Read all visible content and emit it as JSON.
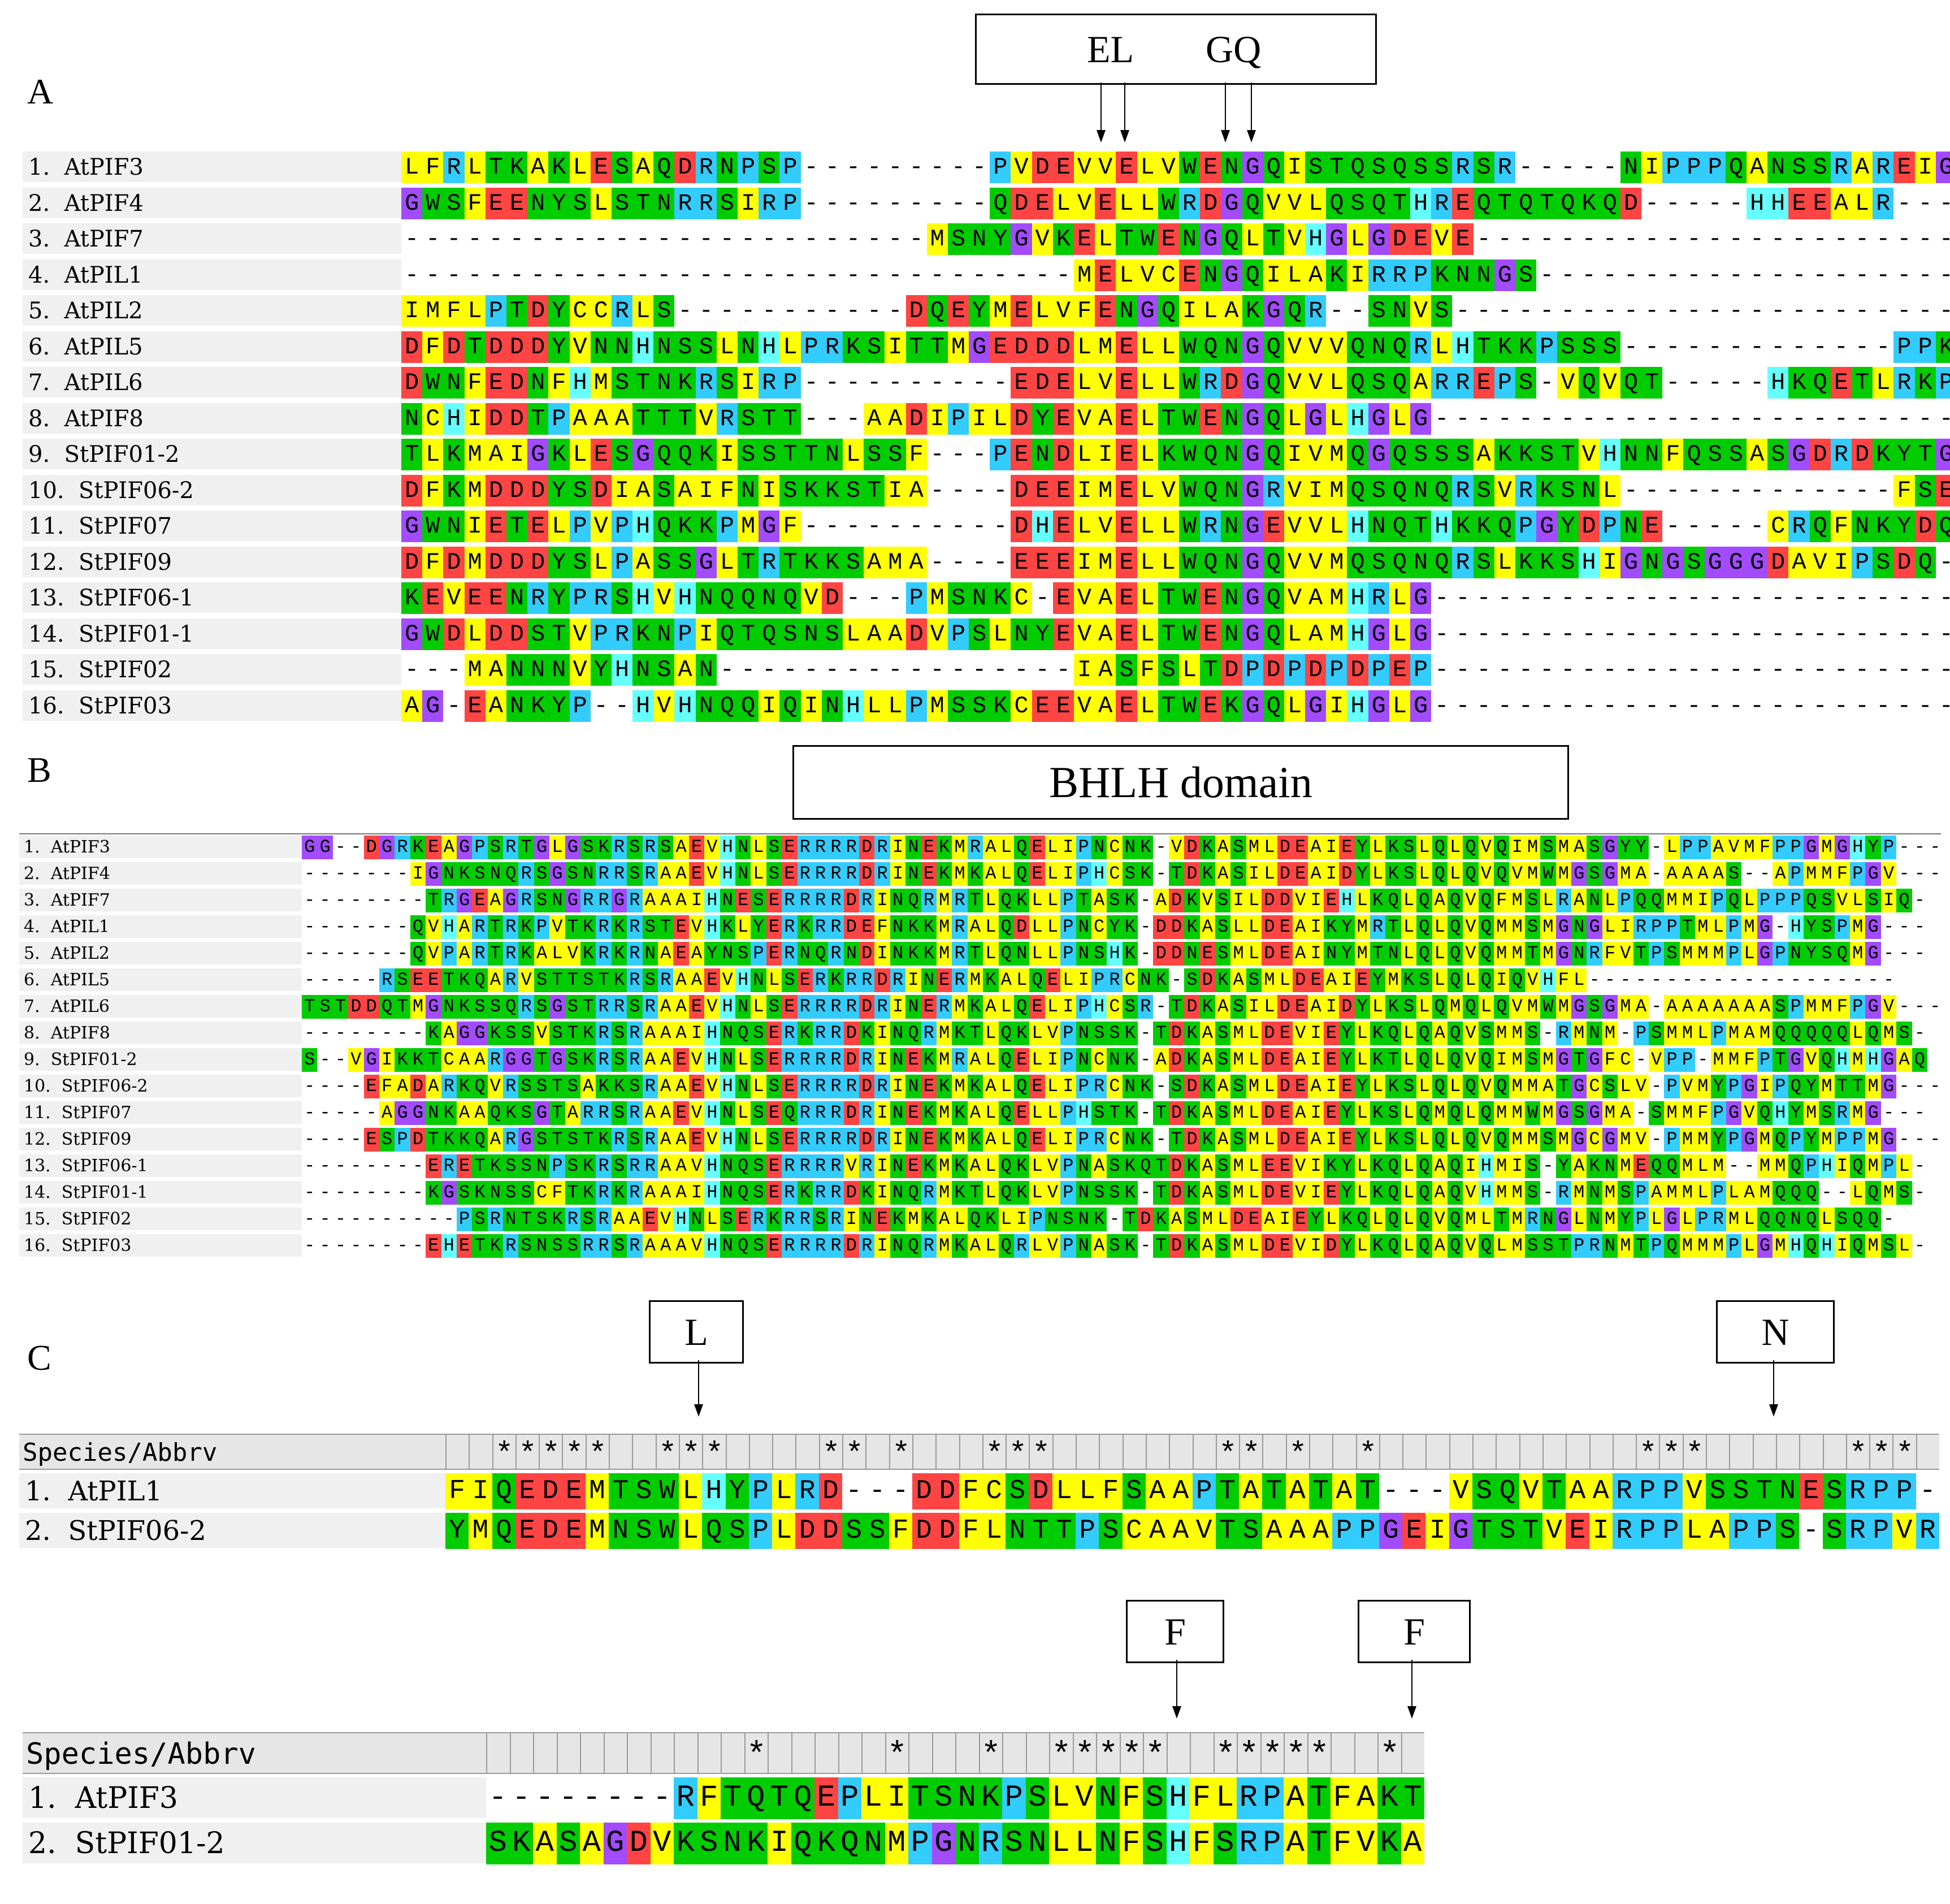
{
  "colors": {
    "A": "#ffff00",
    "C": "#ffff00",
    "G": "#a24bff",
    "H": "#66ffff",
    "I": "#ffff00",
    "K": "#00cc00",
    "L": "#ffff00",
    "M": "#ffff00",
    "N": "#00cc00",
    "P": "#33ccff",
    "Q": "#00cc00",
    "R": "#33ccff",
    "S": "#00cc00",
    "T": "#00cc00",
    "V": "#ffff00",
    "W": "#00cc00",
    "Y": "#00cc00",
    "F": "#ffff00",
    "D": "#ff4444",
    "E": "#ff4444",
    "-": "#ffffff"
  },
  "panelA": {
    "letter": "A",
    "box": {
      "part1": "EL",
      "part2": "GQ"
    },
    "names": [
      "1.  AtPIF3",
      "2.  AtPIF4",
      "3.  AtPIF7",
      "4.  AtPIL1",
      "5.  AtPIL2",
      "6.  AtPIL5",
      "7.  AtPIL6",
      "8.  AtPIF8",
      "9.  StPIF01-2",
      "10.  StPIF06-2",
      "11.  StPIF07",
      "12.  StPIF09",
      "13.  StPIF06-1",
      "14.  StPIF01-1",
      "15.  StPIF02",
      "16.  StPIF03"
    ],
    "seqs": [
      "LFRLTKAKLESAQDRNPSP---------PVDEVVELVWENGQISTQSQSSRSR-----NIPPPQANSSRAREIGN",
      "GWSFEENYSLSTNRRSIRP---------QDELVELLWRDGQVVLQSQTHREQTQTQKQD-----HHEEALR---",
      "-------------------------MSNYGVKELTWENGQLTVHGLGDEVE------------------------",
      "--------------------------------MELVCENGQILAKIRRPKNNGS---------------------",
      "IMFLPTDYCCRLS-----------DQEYMELVFENGQILAKGQR--SNVS-------------------------",
      "DFDTDDDYVNNHNSSLNHLPRKSITTMGEDDDLMELLWQNGQVVVQNQRLHTKKPSSS-------------PPKL-",
      "DWNFEDNFHMSTNKRSIRP----------EDELVELLWRDGQVVLQSQARREPS-VQVQT-----HKQETLRKP-",
      "NCHIDDTPAAATTTVRSTT---AADIPILDYEVAELTWENGQLGLHGLG--------------------------",
      "TLKMAIGKLESGQQKISSTTNLSSF---PENDLIELKWQNGQIVMQGQSSSAKKSTVHNNFQSSASGDRDKYTGN",
      "DFKMDDDYSDIASAIFNISKKSTIA----DEEIMELVWQNGRVIMQSQNQRSVRKSNL-------------FSEQ-",
      "GWNIETELPVPHQKKPMGF----------DHELVELLWRNGEVVLHNQTHKKQPGYDPNE-----CRQFNKYDQ-",
      "DFDMDDDYSLPASSGLTRTKKSAMA----EEEIMELLWQNGQVVMQSQNQRSLKKSHIGNGSGGGDAVIPSDQ-",
      "KEVEENRYPRSHVHNQQNQVD---PMSNKC-EVAELTWENGQVAMHRLG--------------------------",
      "GWDLDDSTVPRKNPIQTQSNSLAADVPSLNYEVAELTWENGQLAMHGLG--------------------------",
      "---MANNNVYHNSAN-----------------IASFSLTDPDPDPDPEP--------------------------",
      "AG-EANKYP--HVHNQQIQINHLLPMSSKCEEVAELTWEKGQLGIHGLG--------------------------"
    ]
  },
  "panelB": {
    "letter": "B",
    "box": "BHLH domain",
    "names": [
      "1.  AtPIF3",
      "2.  AtPIF4",
      "3.  AtPIF7",
      "4.  AtPIL1",
      "5.  AtPIL2",
      "6.  AtPIL5",
      "7.  AtPIL6",
      "8.  AtPIF8",
      "9.  StPIF01-2",
      "10.  StPIF06-2",
      "11.  StPIF07",
      "12.  StPIF09",
      "13.  StPIF06-1",
      "14.  StPIF01-1",
      "15.  StPIF02",
      "16.  StPIF03"
    ],
    "seqs": [
      "GG--DGRKEAGPSRTGLGSKRSRSAEVHNLSERRRRDRINEKMRALQELIPNCNK-VDKASMLDEAIEYLKSLQLQVQIMSMASGYY-LPPAVMFPPGMGHYP---",
      "-------IGNKSNQRSGSNRRSRAAEVHNLSERRRRDRINEKMKALQELIPHCSK-TDKASILDEAIDYLKSLQLQVQVMWMGSGMA-AAAAS--APMMFPGV---",
      "--------TRGEAGRSNGRRGRAAAIHNESERRRRDRINQRMRTLQKLLPTASK-ADKVSILDDVIEHLKQLQAQVQFMSLRANLPQQMMIPQLPPPQSVLSIQ-",
      "-------QVHARTRKPVTKRKRSTEVHKLYERKRRDEFNKKMRALQDLLPNCYK-DDKASLLDEAIKYMRTLQLQVQMMSMGNGLIRPPTMLPMG-HYSPMG---",
      "-------QVPARTRKALVKRKRNAEAYNSPERNQRNDINKKMRTLQNLLPNSHK-DDNESMLDEAINYMTNLQLQVQMMTMGNRFVTPSMMMPLGPNYSQMG---",
      "-----RSEETKQARVSTTSTKRSRAAEVHNLSERKRRDRINERMKALQELIPRCNK-SDKASMLDEAIEYMKSLQLQIQVHFL--------------------",
      "TSTDDQTMGNKSSQRSGSTRRSRAAEVHNLSERRRRDRINERMKALQELIPHCSR-TDKASILDEAIDYLKSLQMQLQVMWMGSGMA-AAAAAAASPMMFPGV---",
      "--------KAGGKSSVSTKRSRAAAIHNQSERKRRDKINQRMKTLQKLVPNSSK-TDKASMLDEVIEYLKQLQAQVSMMS-RMNM-PSMMLPMAMQQQQQLQMS-",
      "S--VGIKKTCAARGGTGSKRSRAAEVHNLSERRRRDRINEKMRALQELIPNCNK-ADKASMLDEAIEYLKTLQLQVQIMSMGTGFC-VPP-MMFPTGVQHMHGAQ",
      "----EFADARKQVRSSTSAKKSRAAEVHNLSERRRRDRINEKMKALQELIPRCNK-SDKASMLDEAIEYLKSLQLQVQMMATGCSLV-PVMYPGIPQYMTTMG---",
      "-----AGGNKAAQKSGTARRSRAAEVHNLSEQRRRDRINEKMKALQELLPHSTK-TDKASMLDEAIEYLKSLQMQLQMMWMGSGMA-SMMFPGVQHYMSRMG---",
      "----ESPDTKKQARGSTSTKRSRAAEVHNLSERRRRDRINEKMKALQELIPRCNK-TDKASMLDEAIEYLKSLQLQVQMMSMGCGMV-PMMYPGMQPYMPPMG---",
      "--------ERETKSSNPSKRSRRAAVHNQSERRRRVRINEKMKALQKLVPNASKQTDKASMLEEVIKYLKQLQAQIHMIS-YAKNMEQQMLM--MMQPHIQMPL-",
      "--------KGSKNSSCFTKRKRAAAIHNQSERKRRDKINQRMKTLQKLVPNSSK-TDKASMLDEVIEYLKQLQAQVHMMS-RMNMSPAMMLPLAMQQQ--LQMS-",
      "----------PSRNTSKRSRAAEVHNLSERKRRSRINEKMKALQKLIPNSNK-TDKASMLDEAIEYLKQLQLQVQMLTMRNGLNMYPLGLPRMLQQNQLSQQ-",
      "--------EHETKRSNSSRRSRAAAVHNQSERRRRDRINQRMKALQRLVPNASK-TDKASMLDEVIDYLKQLQAQVQLMSSTPRNMTPQMMMPLGMHQHIQMSL-"
    ]
  },
  "panelC": {
    "letter": "C",
    "header_label": "Species/Abbrv",
    "top": {
      "names": [
        "1.  AtPIL1",
        "2.  StPIF06-2"
      ],
      "seqs": [
        "FIQEDEMTSWLHYPLRD---DDFCSDLLFSAAPTATATAT---VSQVTAARPPVSSTNESRPP-",
        "YMQEDEMNSWLQSPLDDSSFDDFLNTTPSCAAVTSAAAPPGEIGTSTVEIRPPLAPPS-SRPVR"
      ],
      "stars": "  *****  ***    ** *   ***       ** *  *           ***      ***   ",
      "boxes": [
        "L",
        "N"
      ]
    },
    "bottom": {
      "names": [
        "1.  AtPIF3",
        "2.  StPIF01-2"
      ],
      "seqs": [
        "--------RFTQTQEPLITSNKPSLVNFSHFLRPATFAKT",
        "SKASAGDVKSNKIQKQNMPGNRSNLLNFSHFSRPATFVKA"
      ],
      "stars": "           *     *   *  *****  *****  *  ",
      "boxes": [
        "F",
        "F"
      ]
    }
  }
}
